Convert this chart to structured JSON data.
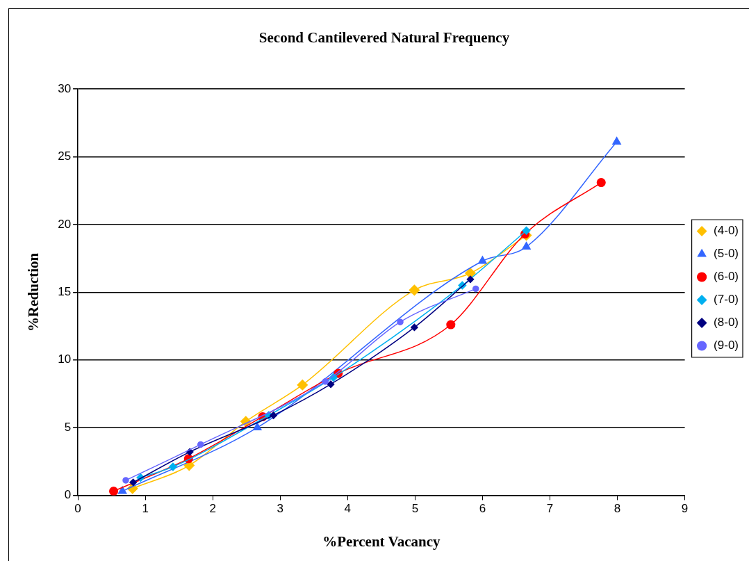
{
  "chart_data": {
    "type": "line",
    "title": "Second Cantilevered Natural Frequency",
    "xlabel": "%Percent Vacancy",
    "ylabel": "%Reduction",
    "xlim": [
      0,
      9
    ],
    "xticks": [
      0,
      1,
      2,
      3,
      4,
      5,
      6,
      7,
      8,
      9
    ],
    "ylim": [
      0,
      30
    ],
    "yticks": [
      0,
      5,
      10,
      15,
      20,
      25,
      30
    ],
    "grid": "y",
    "legend": "right",
    "line_style": "solid",
    "series": [
      {
        "name": "(4-0)",
        "color": "#ffc000",
        "marker": "diamond",
        "x": [
          0.81,
          1.65,
          2.49,
          3.33,
          4.99,
          5.82,
          6.65
        ],
        "values": [
          0.5,
          2.2,
          5.45,
          8.15,
          15.15,
          16.4,
          19.2
        ]
      },
      {
        "name": "(5-0)",
        "color": "#3366ff",
        "marker": "triangle",
        "x": [
          0.66,
          2.66,
          6.0,
          6.65,
          7.99
        ],
        "values": [
          0.3,
          5.0,
          17.3,
          18.35,
          26.1
        ]
      },
      {
        "name": "(6-0)",
        "color": "#ff0000",
        "marker": "circle",
        "x": [
          0.53,
          1.64,
          2.74,
          3.86,
          5.53,
          6.63,
          7.76
        ],
        "values": [
          0.3,
          2.7,
          5.8,
          9.0,
          12.6,
          19.3,
          23.1
        ]
      },
      {
        "name": "(7-0)",
        "color": "#00b0f0",
        "marker": "diamond",
        "x": [
          0.93,
          1.41,
          2.83,
          3.79,
          5.7,
          6.65
        ],
        "values": [
          1.3,
          2.1,
          5.9,
          8.7,
          15.5,
          19.55
        ]
      },
      {
        "name": "(8-0)",
        "color": "#000080",
        "marker": "diamond",
        "x": [
          0.82,
          1.66,
          2.9,
          3.75,
          4.99,
          5.82
        ],
        "values": [
          0.95,
          3.2,
          5.9,
          8.2,
          12.4,
          15.95
        ]
      },
      {
        "name": "(9-0)",
        "color": "#6666ff",
        "marker": "circle",
        "x": [
          0.71,
          1.82,
          3.67,
          4.78,
          5.9
        ],
        "values": [
          1.1,
          3.75,
          8.4,
          12.8,
          15.25
        ]
      }
    ]
  }
}
